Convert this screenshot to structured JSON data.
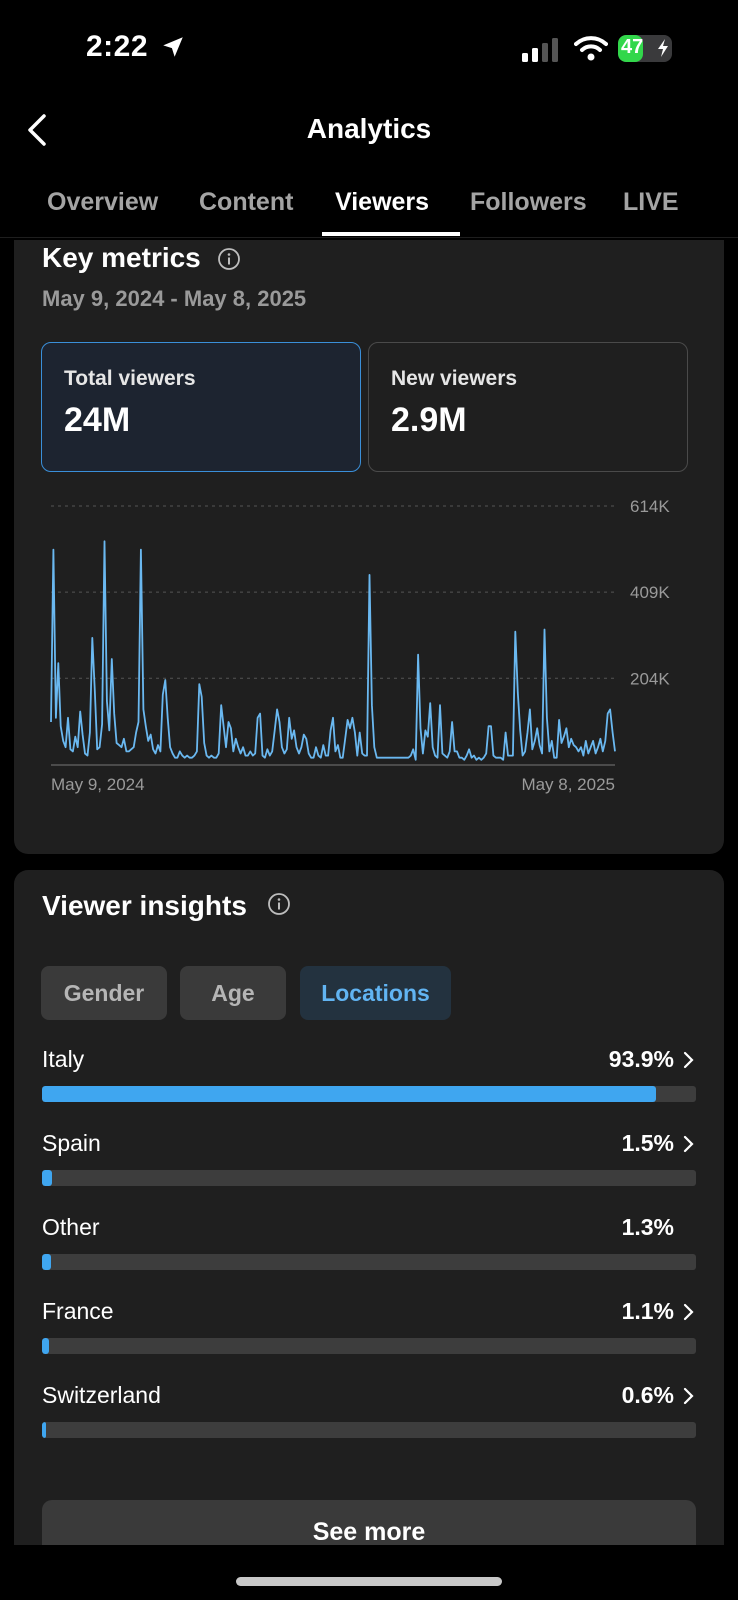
{
  "status_bar": {
    "time": "2:22",
    "battery_percent": "47",
    "battery_level": 0.47,
    "icons": [
      "location-arrow-icon",
      "cellular-signal-icon",
      "wifi-icon",
      "battery-charging-icon"
    ]
  },
  "header": {
    "title": "Analytics",
    "back_icon": "chevron-left-icon"
  },
  "tabs": [
    {
      "label": "Overview",
      "active": false
    },
    {
      "label": "Content",
      "active": false
    },
    {
      "label": "Viewers",
      "active": true
    },
    {
      "label": "Followers",
      "active": false
    },
    {
      "label": "LIVE",
      "active": false
    }
  ],
  "key_metrics": {
    "title": "Key metrics",
    "date_range": "May 9, 2024 - May 8, 2025",
    "metrics": [
      {
        "label": "Total viewers",
        "value": "24M",
        "selected": true
      },
      {
        "label": "New viewers",
        "value": "2.9M",
        "selected": false
      }
    ]
  },
  "chart_data": {
    "type": "line",
    "title": "",
    "xlabel": "",
    "ylabel": "",
    "x_start_label": "May 9, 2024",
    "x_end_label": "May 8, 2025",
    "y_ticks": [
      {
        "value": 614,
        "label": "614K"
      },
      {
        "value": 409,
        "label": "409K"
      },
      {
        "value": 204,
        "label": "204K"
      }
    ],
    "ylim": [
      0,
      614
    ],
    "grid": true,
    "color": "#6ab8f0",
    "series": [
      {
        "values": [
          100,
          510,
          110,
          240,
          90,
          55,
          40,
          110,
          35,
          30,
          65,
          40,
          125,
          70,
          25,
          20,
          75,
          300,
          175,
          35,
          40,
          95,
          530,
          150,
          80,
          250,
          120,
          50,
          45,
          40,
          60,
          30,
          30,
          35,
          40,
          75,
          100,
          510,
          130,
          90,
          55,
          70,
          35,
          25,
          45,
          30,
          165,
          200,
          110,
          40,
          25,
          15,
          15,
          30,
          20,
          15,
          20,
          15,
          15,
          20,
          30,
          190,
          160,
          50,
          20,
          15,
          20,
          15,
          15,
          25,
          140,
          90,
          40,
          100,
          85,
          30,
          60,
          40,
          25,
          40,
          20,
          20,
          30,
          20,
          25,
          110,
          120,
          20,
          15,
          35,
          20,
          30,
          80,
          130,
          100,
          40,
          25,
          35,
          110,
          60,
          80,
          40,
          25,
          40,
          70,
          60,
          25,
          15,
          15,
          40,
          20,
          15,
          45,
          20,
          20,
          80,
          110,
          30,
          45,
          15,
          15,
          60,
          105,
          85,
          110,
          75,
          20,
          75,
          25,
          20,
          20,
          450,
          140,
          40,
          15,
          15,
          15,
          15,
          15,
          15,
          15,
          15,
          15,
          15,
          15,
          15,
          15,
          15,
          20,
          35,
          10,
          260,
          85,
          25,
          80,
          65,
          145,
          40,
          20,
          15,
          140,
          25,
          20,
          15,
          30,
          100,
          30,
          30,
          15,
          15,
          10,
          20,
          35,
          15,
          20,
          10,
          15,
          10,
          15,
          25,
          90,
          90,
          20,
          15,
          15,
          15,
          10,
          75,
          20,
          20,
          20,
          315,
          170,
          80,
          20,
          30,
          75,
          130,
          35,
          55,
          85,
          45,
          25,
          320,
          110,
          30,
          55,
          15,
          15,
          105,
          50,
          65,
          85,
          40,
          60,
          45,
          40,
          30,
          40,
          20,
          55,
          25,
          40,
          55,
          25,
          40,
          60,
          30,
          55,
          120,
          130,
          75,
          30
        ]
      }
    ]
  },
  "viewer_insights": {
    "title": "Viewer insights",
    "tabs": [
      {
        "label": "Gender",
        "active": false
      },
      {
        "label": "Age",
        "active": false
      },
      {
        "label": "Locations",
        "active": true
      }
    ],
    "locations": [
      {
        "name": "Italy",
        "percent_label": "93.9%",
        "percent": 93.9,
        "has_chevron": true
      },
      {
        "name": "Spain",
        "percent_label": "1.5%",
        "percent": 1.5,
        "has_chevron": true
      },
      {
        "name": "Other",
        "percent_label": "1.3%",
        "percent": 1.3,
        "has_chevron": false
      },
      {
        "name": "France",
        "percent_label": "1.1%",
        "percent": 1.1,
        "has_chevron": true
      },
      {
        "name": "Switzerland",
        "percent_label": "0.6%",
        "percent": 0.6,
        "has_chevron": true
      }
    ],
    "see_more_label": "See more"
  }
}
